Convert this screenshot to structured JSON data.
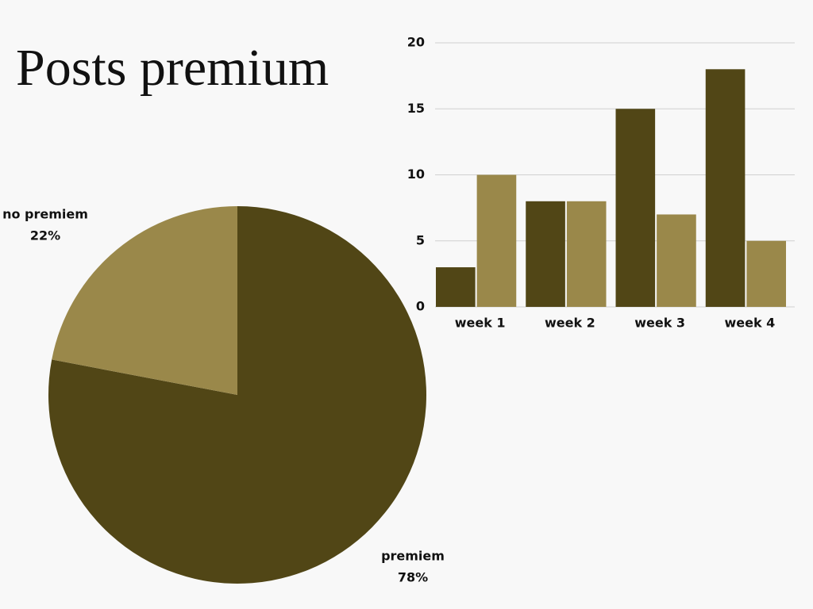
{
  "title": "Posts premium",
  "chart_data": [
    {
      "type": "pie",
      "categories": [
        "premiem",
        "no premiem"
      ],
      "values": [
        78,
        22
      ],
      "value_labels": [
        "78%",
        "22%"
      ],
      "colors": [
        "#514616",
        "#9a884a"
      ]
    },
    {
      "type": "bar",
      "categories": [
        "week 1",
        "week 2",
        "week 3",
        "week 4"
      ],
      "series": [
        {
          "color": "#514616",
          "values": [
            3,
            8,
            15,
            18
          ]
        },
        {
          "color": "#9a884a",
          "values": [
            10,
            8,
            7,
            5
          ]
        }
      ],
      "ylim": [
        0,
        20
      ],
      "yticks": [
        0,
        5,
        10,
        15,
        20
      ],
      "grid": true
    }
  ]
}
